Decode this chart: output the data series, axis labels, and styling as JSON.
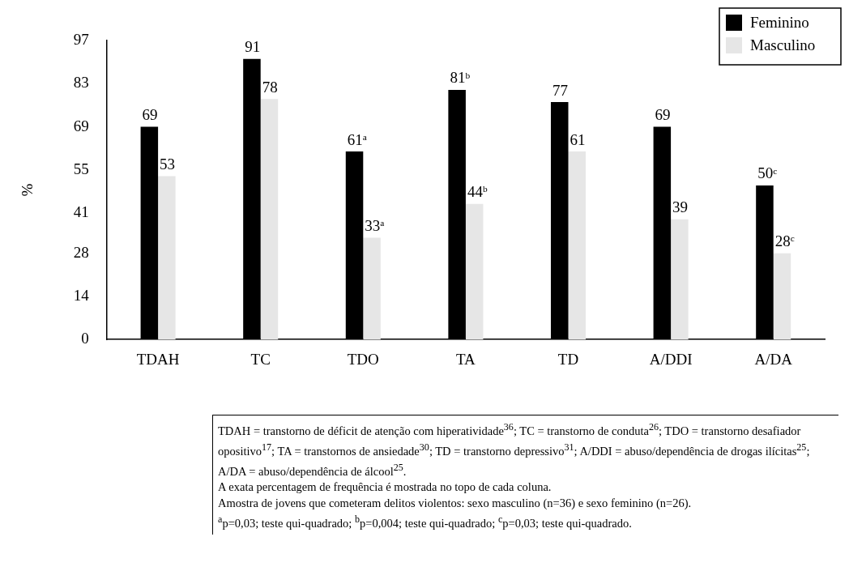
{
  "chart_data": {
    "type": "bar",
    "ylabel": "%",
    "categories": [
      "TDAH",
      "TC",
      "TDO",
      "TA",
      "TD",
      "A/DDI",
      "A/DA"
    ],
    "series": [
      {
        "name": "Feminino",
        "color": "#000000",
        "values": [
          69,
          91,
          61,
          81,
          77,
          69,
          50
        ],
        "value_labels": [
          "69",
          "91",
          "61$^{a}$",
          "81$^{b}$",
          "77",
          "69",
          "50$^{c}$"
        ]
      },
      {
        "name": "Masculino",
        "color": "#e6e6e6",
        "values": [
          53,
          78,
          33,
          44,
          61,
          39,
          28
        ],
        "value_labels": [
          "53",
          "78",
          "33$^{a}$",
          "44$^{b}$",
          "61",
          "39",
          "28$^{c}$"
        ]
      }
    ],
    "ylim": [
      0,
      97
    ],
    "yticks": [
      0,
      14,
      28,
      41,
      55,
      69,
      83,
      97
    ],
    "grid": false,
    "legend": "top right",
    "annotations": [
      "TDAH = transtorno de déficit de atenção com hiperatividade$^{36}$; TC = transtorno de conduta$^{26}$; TDO = transtorno desafiador opositivo$^{17}$; TA = transtornos de ansiedade$^{30}$; TD = transtorno depressivo$^{31}$; A/DDI = abuso/dependência de drogas ilícitas$^{25}$; A/DA = abuso/dependência de álcool$^{25}$.",
      "A exata percentagem de frequência é mostrada no topo de cada coluna.",
      "Amostra de jovens que cometeram delitos violentos: sexo masculino (n=36) e sexo feminino (n=26).",
      "$^{a}$p=0,03; teste qui-quadrado; $^{b}$p=0,004; teste qui-quadrado; $^{c}$p=0,03; teste qui-quadrado."
    ]
  }
}
